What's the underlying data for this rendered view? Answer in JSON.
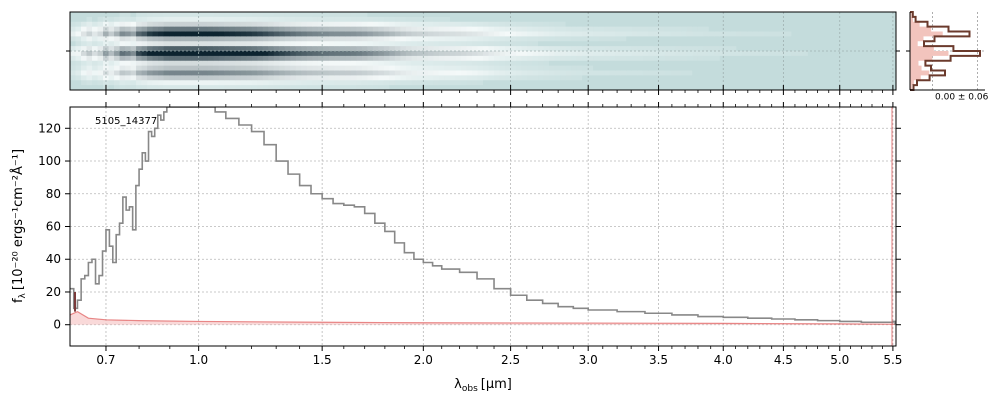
{
  "chart_data": [
    {
      "panel": "2d-spectrum",
      "type": "heatmap",
      "colormap": [
        "#c4dcdc",
        "#f4f9f9",
        "#0d2430"
      ],
      "profile_centre": 0.0,
      "profile_rows": 16,
      "x_scale": "x^(1/2.4) (same as spectrum axis)"
    },
    {
      "panel": "profile",
      "type": "line",
      "annotation": "0.00 ± 0.06",
      "profile": [
        0.04,
        0.08,
        0.25,
        0.55,
        0.85,
        0.35,
        0.2,
        0.62,
        1.0,
        0.58,
        0.22,
        0.3,
        0.5,
        0.28,
        0.1,
        0.05
      ]
    },
    {
      "panel": "1d-spectrum",
      "type": "line",
      "label": "5105_14377",
      "xlabel_main": "λ",
      "xlabel_sub": "obs",
      "xlabel_unit": "[μm]",
      "ylabel_main": "f",
      "ylabel_sub": "λ",
      "ylabel_unit": "[10⁻²⁰ ergs⁻¹cm⁻²Å⁻¹]",
      "xlim": [
        0.6,
        5.53
      ],
      "ylim": [
        -13,
        133
      ],
      "x_scale": "power 1/2.4",
      "x_ticks": [
        0.7,
        1.0,
        1.5,
        2.0,
        2.5,
        3.0,
        3.5,
        4.0,
        4.5,
        5.0,
        5.5
      ],
      "x_tick_labels": [
        "0.7",
        "1.0",
        "1.5",
        "2.0",
        "2.5",
        "3.0",
        "3.5",
        "4.0",
        "4.5",
        "5.0",
        "5.5"
      ],
      "x_minor_ticks": [
        0.8,
        0.9,
        1.1,
        1.2,
        1.3,
        1.4,
        1.6,
        1.7,
        1.8,
        1.9,
        2.1,
        2.2,
        2.3,
        2.4,
        2.6,
        2.7,
        2.8,
        2.9,
        3.1,
        3.2,
        3.3,
        3.4,
        3.6,
        3.7,
        3.8,
        3.9,
        4.1,
        4.2,
        4.3,
        4.4,
        4.6,
        4.7,
        4.8,
        4.9,
        5.1,
        5.2,
        5.3,
        5.4
      ],
      "y_ticks": [
        0,
        20,
        40,
        60,
        80,
        100,
        120
      ],
      "grid": true,
      "series": [
        {
          "role": "flux",
          "color": "#888888",
          "x": [
            0.6,
            0.61,
            0.62,
            0.63,
            0.64,
            0.65,
            0.66,
            0.67,
            0.68,
            0.69,
            0.7,
            0.71,
            0.72,
            0.73,
            0.74,
            0.75,
            0.76,
            0.77,
            0.78,
            0.79,
            0.8,
            0.81,
            0.82,
            0.83,
            0.84,
            0.85,
            0.86,
            0.87,
            0.88,
            0.89,
            0.9,
            0.92,
            0.94,
            0.96,
            0.98,
            1.0,
            1.03,
            1.06,
            1.1,
            1.15,
            1.2,
            1.25,
            1.3,
            1.35,
            1.4,
            1.45,
            1.5,
            1.55,
            1.6,
            1.65,
            1.7,
            1.75,
            1.8,
            1.85,
            1.9,
            1.95,
            2.0,
            2.05,
            2.1,
            2.2,
            2.3,
            2.4,
            2.5,
            2.6,
            2.7,
            2.8,
            2.9,
            3.0,
            3.2,
            3.4,
            3.6,
            3.8,
            4.0,
            4.2,
            4.4,
            4.6,
            4.8,
            5.0,
            5.2,
            5.4,
            5.5,
            5.52
          ],
          "y": [
            22,
            10,
            15,
            28,
            30,
            38,
            40,
            25,
            30,
            45,
            58,
            48,
            38,
            55,
            62,
            78,
            70,
            72,
            58,
            85,
            95,
            105,
            100,
            118,
            115,
            120,
            128,
            125,
            130,
            133,
            133,
            133,
            133,
            133,
            133,
            133,
            133,
            130,
            126,
            122,
            118,
            110,
            100,
            92,
            85,
            80,
            77,
            74,
            73,
            72,
            68,
            62,
            57,
            50,
            44,
            40,
            38,
            36,
            34,
            32,
            28,
            22,
            18,
            15,
            13,
            11,
            10,
            9,
            8,
            7,
            6,
            5,
            4.5,
            4,
            3.5,
            3,
            2.5,
            2,
            1.5,
            1.5,
            2,
            0
          ]
        },
        {
          "role": "model",
          "color": "#e05a5a",
          "x": [
            0.6,
            0.62,
            0.65,
            0.7,
            0.8,
            1.0,
            1.5,
            2.0,
            3.0,
            4.0,
            5.0,
            5.52
          ],
          "y": [
            6,
            8,
            4,
            3,
            2.5,
            2,
            1.5,
            1.2,
            1,
            0.8,
            0.5,
            0.3
          ]
        },
        {
          "role": "model-band",
          "color": "#f4b4b4",
          "x": [
            0.6,
            0.62,
            0.65,
            0.7,
            0.8,
            1.0,
            1.5,
            2.0,
            3.0,
            4.0,
            5.0,
            5.52
          ],
          "y": [
            6,
            8,
            4,
            3,
            2.5,
            2,
            1.5,
            1.2,
            1,
            0.8,
            0.5,
            0.3
          ]
        }
      ]
    }
  ]
}
